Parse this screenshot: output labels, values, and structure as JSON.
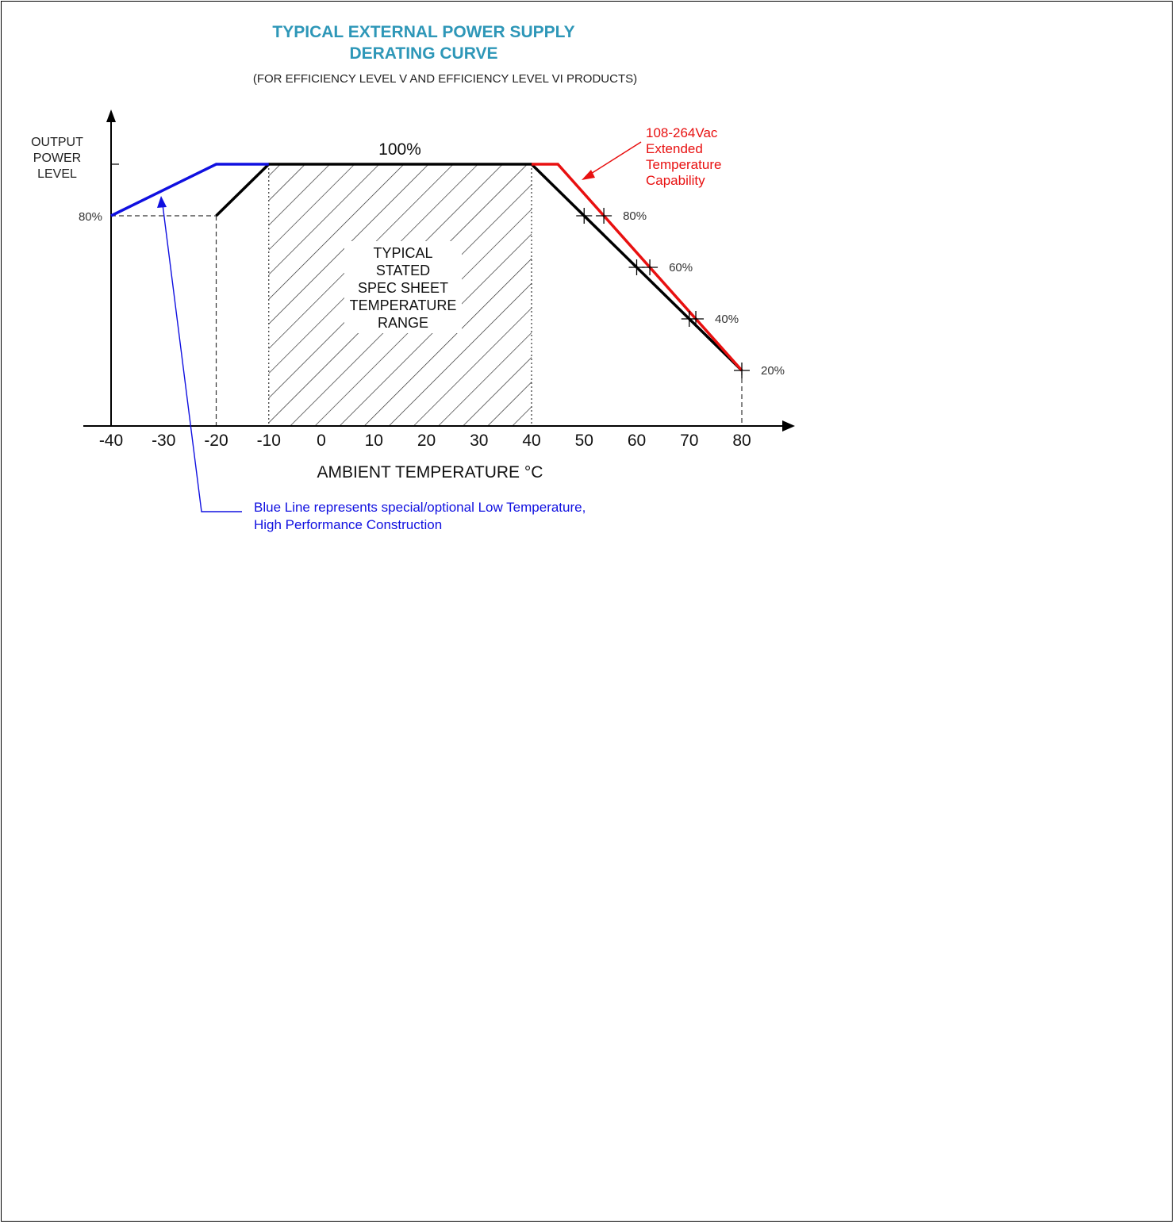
{
  "colors": {
    "title": "#2e97b8",
    "standard": "#000000",
    "low_temp": "#1010e0",
    "extended": "#e81010"
  },
  "chart_data": {
    "type": "line",
    "title": [
      "TYPICAL EXTERNAL POWER SUPPLY",
      "DERATING CURVE"
    ],
    "subtitle": "(FOR EFFICIENCY LEVEL V AND EFFICIENCY LEVEL VI PRODUCTS)",
    "ylabel": [
      "OUTPUT",
      "POWER",
      "LEVEL"
    ],
    "xlabel": "AMBIENT TEMPERATURE °C",
    "xlim": [
      -40,
      80
    ],
    "ylim": [
      0,
      100
    ],
    "x_ticks": [
      "-40",
      "-30",
      "-20",
      "-10",
      "0",
      "10",
      "20",
      "30",
      "40",
      "50",
      "60",
      "70",
      "80"
    ],
    "y_label_80": "80%",
    "top_label": "100%",
    "range_label": [
      "TYPICAL",
      "STATED",
      "SPEC SHEET",
      "TEMPERATURE",
      "RANGE"
    ],
    "range": [
      -10,
      40
    ],
    "series": [
      {
        "key": "standard",
        "color": "#000000",
        "points": [
          [
            -20,
            80
          ],
          [
            -10,
            100
          ],
          [
            40,
            100
          ],
          [
            80,
            20
          ]
        ]
      },
      {
        "key": "low_temp",
        "color": "#1010e0",
        "points": [
          [
            -40,
            80
          ],
          [
            -20,
            100
          ],
          [
            -10,
            100
          ]
        ]
      },
      {
        "key": "extended",
        "color": "#e81010",
        "points": [
          [
            40,
            100
          ],
          [
            45,
            100
          ],
          [
            80,
            20
          ]
        ]
      }
    ],
    "derating_markers": [
      {
        "label": "80%",
        "value": 80
      },
      {
        "label": "60%",
        "value": 60
      },
      {
        "label": "40%",
        "value": 40
      },
      {
        "label": "20%",
        "value": 20
      }
    ],
    "annotations": {
      "extended_note": [
        "108-264Vac",
        "Extended",
        "Temperature",
        "Capability"
      ],
      "blue_note": [
        "Blue Line represents special/optional Low Temperature,",
        "High Performance Construction"
      ]
    }
  }
}
